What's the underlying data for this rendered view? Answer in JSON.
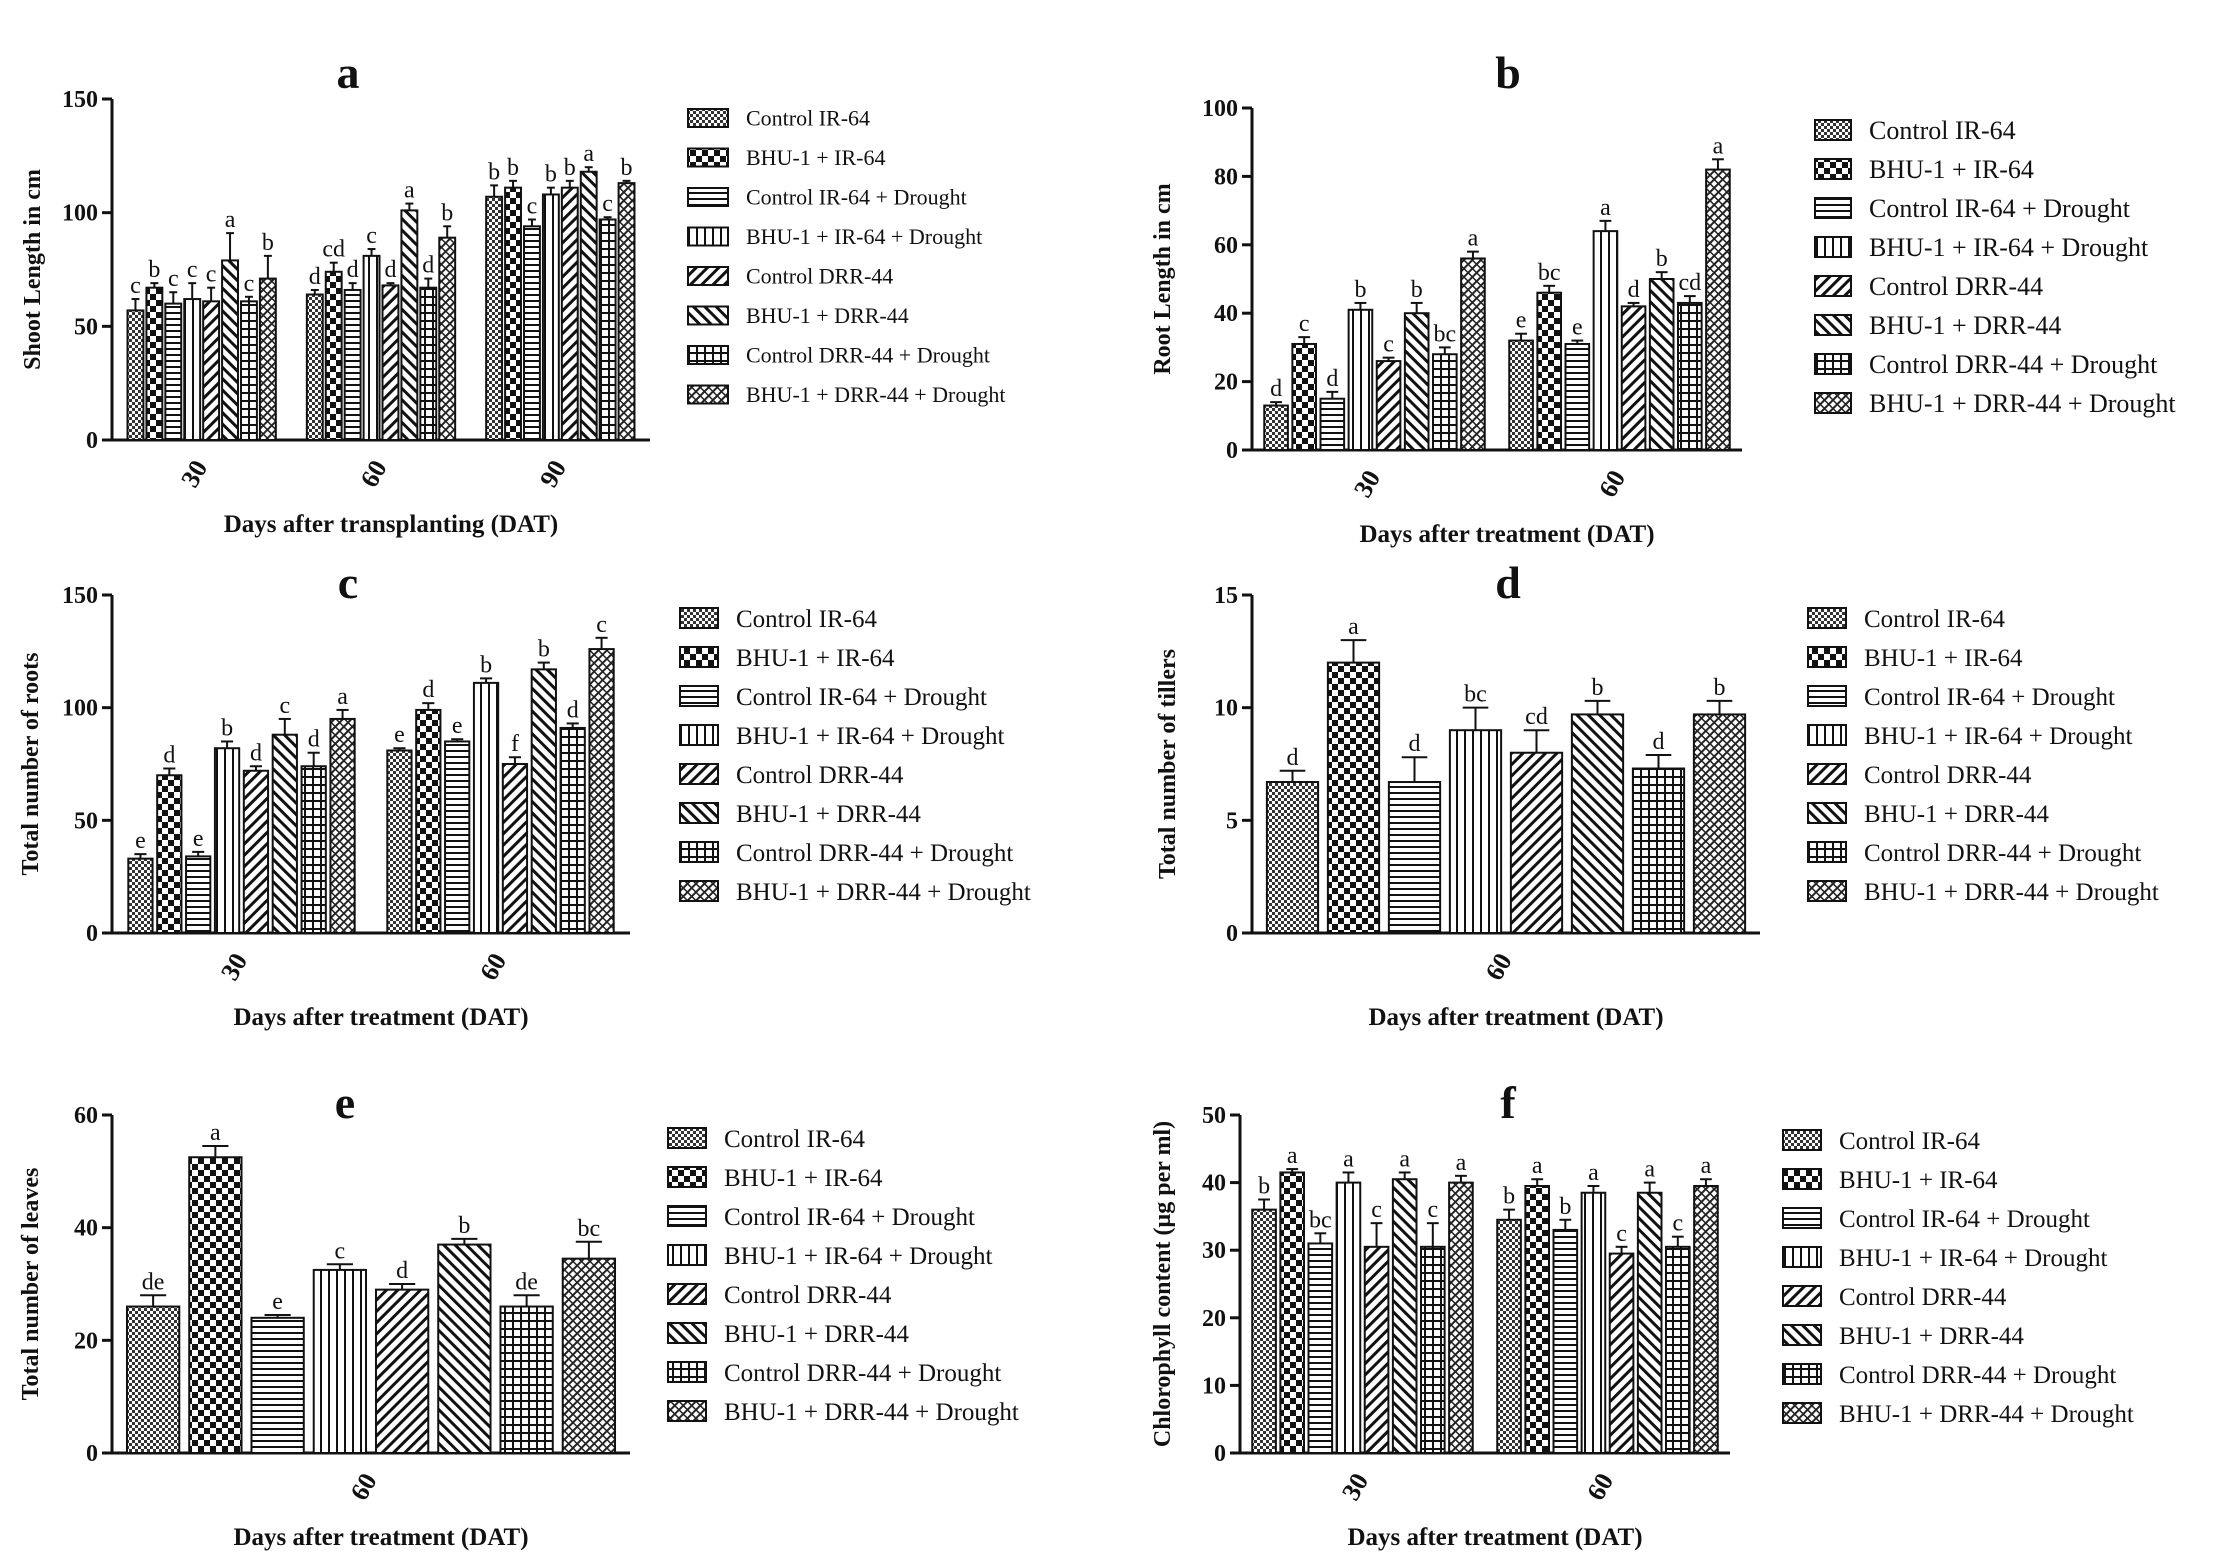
{
  "legend_labels": [
    "Control IR-64",
    "BHU-1 + IR-64",
    "Control IR-64 + Drought",
    "BHU-1 + IR-64 + Drought",
    "Control DRR-44",
    "BHU-1 + DRR-44",
    "Control DRR-44 + Drought",
    "BHU-1 + DRR-44 + Drought"
  ],
  "chart_data": [
    {
      "panel": "a",
      "type": "bar",
      "title": "a",
      "ylabel": "Shoot Length in cm",
      "xlabel": "Days after transplanting (DAT)",
      "categories": [
        "30",
        "60",
        "90"
      ],
      "ylim": [
        0,
        150
      ],
      "yticks": [
        0,
        50,
        100,
        150
      ],
      "series": [
        {
          "name": "Control IR-64",
          "values": [
            57,
            64,
            107
          ],
          "errors": [
            5,
            2,
            5
          ],
          "letters": [
            "c",
            "d",
            "b"
          ]
        },
        {
          "name": "BHU-1 + IR-64",
          "values": [
            67,
            74,
            111
          ],
          "errors": [
            2,
            4,
            3
          ],
          "letters": [
            "b",
            "cd",
            "b"
          ]
        },
        {
          "name": "Control IR-64 + Drought",
          "values": [
            60,
            66,
            94
          ],
          "errors": [
            5,
            3,
            3
          ],
          "letters": [
            "c",
            "d",
            "c"
          ]
        },
        {
          "name": "BHU-1 + IR-64 + Drought",
          "values": [
            62,
            81,
            108
          ],
          "errors": [
            7,
            3,
            3
          ],
          "letters": [
            "c",
            "c",
            "b"
          ]
        },
        {
          "name": "Control DRR-44",
          "values": [
            61,
            68,
            111
          ],
          "errors": [
            6,
            1,
            3
          ],
          "letters": [
            "c",
            "d",
            "b"
          ]
        },
        {
          "name": "BHU-1 + DRR-44",
          "values": [
            79,
            101,
            118
          ],
          "errors": [
            12,
            3,
            2
          ],
          "letters": [
            "a",
            "a",
            "a"
          ]
        },
        {
          "name": "Control DRR-44 + Drought",
          "values": [
            61,
            67,
            97
          ],
          "errors": [
            2,
            4,
            1
          ],
          "letters": [
            "c",
            "d",
            "c"
          ]
        },
        {
          "name": "BHU-1 + DRR-44 + Drought",
          "values": [
            71,
            89,
            113
          ],
          "errors": [
            10,
            5,
            1
          ],
          "letters": [
            "b",
            "b",
            "b"
          ]
        }
      ]
    },
    {
      "panel": "b",
      "type": "bar",
      "title": "b",
      "ylabel": "Root Length in cm",
      "xlabel": "Days after treatment (DAT)",
      "categories": [
        "30",
        "60"
      ],
      "ylim": [
        0,
        100
      ],
      "yticks": [
        0,
        20,
        40,
        60,
        80,
        100
      ],
      "series": [
        {
          "name": "Control IR-64",
          "values": [
            13,
            32
          ],
          "errors": [
            1,
            2
          ],
          "letters": [
            "d",
            "e"
          ]
        },
        {
          "name": "BHU-1 + IR-64",
          "values": [
            31,
            46
          ],
          "errors": [
            2,
            2
          ],
          "letters": [
            "c",
            "bc"
          ]
        },
        {
          "name": "Control IR-64 + Drought",
          "values": [
            15,
            31
          ],
          "errors": [
            2,
            1
          ],
          "letters": [
            "d",
            "e"
          ]
        },
        {
          "name": "BHU-1 + IR-64 + Drought",
          "values": [
            41,
            64
          ],
          "errors": [
            2,
            3
          ],
          "letters": [
            "b",
            "a"
          ]
        },
        {
          "name": "Control DRR-44",
          "values": [
            26,
            42
          ],
          "errors": [
            1,
            1
          ],
          "letters": [
            "c",
            "d"
          ]
        },
        {
          "name": "BHU-1 + DRR-44",
          "values": [
            40,
            50
          ],
          "errors": [
            3,
            2
          ],
          "letters": [
            "b",
            "b"
          ]
        },
        {
          "name": "Control DRR-44 + Drought",
          "values": [
            28,
            43
          ],
          "errors": [
            2,
            2
          ],
          "letters": [
            "bc",
            "cd"
          ]
        },
        {
          "name": "BHU-1 + DRR-44 + Drought",
          "values": [
            56,
            82
          ],
          "errors": [
            2,
            3
          ],
          "letters": [
            "a",
            "a"
          ]
        }
      ]
    },
    {
      "panel": "c",
      "type": "bar",
      "title": "c",
      "ylabel": "Total number of roots",
      "xlabel": "Days after treatment (DAT)",
      "categories": [
        "30",
        "60"
      ],
      "ylim": [
        0,
        150
      ],
      "yticks": [
        0,
        50,
        100,
        150
      ],
      "series": [
        {
          "name": "Control IR-64",
          "values": [
            33,
            81
          ],
          "errors": [
            2,
            1
          ],
          "letters": [
            "e",
            "e"
          ]
        },
        {
          "name": "BHU-1 + IR-64",
          "values": [
            70,
            99
          ],
          "errors": [
            3,
            3
          ],
          "letters": [
            "d",
            "d"
          ]
        },
        {
          "name": "Control IR-64 + Drought",
          "values": [
            34,
            85
          ],
          "errors": [
            2,
            1
          ],
          "letters": [
            "e",
            "e"
          ]
        },
        {
          "name": "BHU-1 + IR-64 + Drought",
          "values": [
            82,
            111
          ],
          "errors": [
            3,
            2
          ],
          "letters": [
            "b",
            "b"
          ]
        },
        {
          "name": "Control DRR-44",
          "values": [
            72,
            75
          ],
          "errors": [
            2,
            3
          ],
          "letters": [
            "d",
            "f"
          ]
        },
        {
          "name": "BHU-1 + DRR-44",
          "values": [
            88,
            117
          ],
          "errors": [
            7,
            3
          ],
          "letters": [
            "c",
            "b"
          ]
        },
        {
          "name": "Control DRR-44 + Drought",
          "values": [
            74,
            91
          ],
          "errors": [
            6,
            2
          ],
          "letters": [
            "d",
            "d"
          ]
        },
        {
          "name": "BHU-1 + DRR-44 + Drought",
          "values": [
            95,
            126
          ],
          "errors": [
            4,
            5
          ],
          "letters": [
            "a",
            "c"
          ]
        }
      ]
    },
    {
      "panel": "d",
      "type": "bar",
      "title": "d",
      "ylabel": "Total number of tillers",
      "xlabel": "Days after treatment (DAT)",
      "categories": [
        "60"
      ],
      "ylim": [
        0,
        15
      ],
      "yticks": [
        0,
        5,
        10,
        15
      ],
      "series": [
        {
          "name": "Control IR-64",
          "values": [
            6.7
          ],
          "errors": [
            0.5
          ],
          "letters": [
            "d"
          ]
        },
        {
          "name": "BHU-1 + IR-64",
          "values": [
            12.0
          ],
          "errors": [
            1.0
          ],
          "letters": [
            "a"
          ]
        },
        {
          "name": "Control IR-64 + Drought",
          "values": [
            6.7
          ],
          "errors": [
            1.1
          ],
          "letters": [
            "d"
          ]
        },
        {
          "name": "BHU-1 + IR-64 + Drought",
          "values": [
            9.0
          ],
          "errors": [
            1.0
          ],
          "letters": [
            "bc"
          ]
        },
        {
          "name": "Control DRR-44",
          "values": [
            8.0
          ],
          "errors": [
            1.0
          ],
          "letters": [
            "cd"
          ]
        },
        {
          "name": "BHU-1 + DRR-44",
          "values": [
            9.7
          ],
          "errors": [
            0.6
          ],
          "letters": [
            "b"
          ]
        },
        {
          "name": "Control DRR-44 + Drought",
          "values": [
            7.3
          ],
          "errors": [
            0.6
          ],
          "letters": [
            "d"
          ]
        },
        {
          "name": "BHU-1 + DRR-44 + Drought",
          "values": [
            9.7
          ],
          "errors": [
            0.6
          ],
          "letters": [
            "b"
          ]
        }
      ]
    },
    {
      "panel": "e",
      "type": "bar",
      "title": "e",
      "ylabel": "Total number of leaves",
      "xlabel": "Days after treatment (DAT)",
      "categories": [
        "60"
      ],
      "ylim": [
        0,
        60
      ],
      "yticks": [
        0,
        20,
        40,
        60
      ],
      "series": [
        {
          "name": "Control IR-64",
          "values": [
            26
          ],
          "errors": [
            2
          ],
          "letters": [
            "de"
          ]
        },
        {
          "name": "BHU-1 + IR-64",
          "values": [
            52.5
          ],
          "errors": [
            2
          ],
          "letters": [
            "a"
          ]
        },
        {
          "name": "Control IR-64 + Drought",
          "values": [
            24
          ],
          "errors": [
            0.5
          ],
          "letters": [
            "e"
          ]
        },
        {
          "name": "BHU-1 + IR-64 + Drought",
          "values": [
            32.5
          ],
          "errors": [
            1
          ],
          "letters": [
            "c"
          ]
        },
        {
          "name": "Control DRR-44",
          "values": [
            29
          ],
          "errors": [
            1
          ],
          "letters": [
            "d"
          ]
        },
        {
          "name": "BHU-1 + DRR-44",
          "values": [
            37
          ],
          "errors": [
            1
          ],
          "letters": [
            "b"
          ]
        },
        {
          "name": "Control DRR-44 + Drought",
          "values": [
            26
          ],
          "errors": [
            2
          ],
          "letters": [
            "de"
          ]
        },
        {
          "name": "BHU-1 + DRR-44 + Drought",
          "values": [
            34.5
          ],
          "errors": [
            3
          ],
          "letters": [
            "bc"
          ]
        }
      ]
    },
    {
      "panel": "f",
      "type": "bar",
      "title": "f",
      "ylabel": "Chlorophyll content (µg per ml)",
      "xlabel": "Days after treatment (DAT)",
      "categories": [
        "30",
        "60"
      ],
      "ylim": [
        0,
        50
      ],
      "yticks": [
        0,
        10,
        20,
        30,
        40,
        50
      ],
      "series": [
        {
          "name": "Control IR-64",
          "values": [
            36,
            34.5
          ],
          "errors": [
            1.5,
            1.5
          ],
          "letters": [
            "b",
            "b"
          ]
        },
        {
          "name": "BHU-1 + IR-64",
          "values": [
            41.5,
            39.5
          ],
          "errors": [
            0.5,
            1
          ],
          "letters": [
            "a",
            "a"
          ]
        },
        {
          "name": "Control IR-64 + Drought",
          "values": [
            31,
            33
          ],
          "errors": [
            1.5,
            1.5
          ],
          "letters": [
            "bc",
            "b"
          ]
        },
        {
          "name": "BHU-1 + IR-64 + Drought",
          "values": [
            40,
            38.5
          ],
          "errors": [
            1.5,
            1
          ],
          "letters": [
            "a",
            "a"
          ]
        },
        {
          "name": "Control DRR-44",
          "values": [
            30.5,
            29.5
          ],
          "errors": [
            3.5,
            1
          ],
          "letters": [
            "c",
            "c"
          ]
        },
        {
          "name": "BHU-1 + DRR-44",
          "values": [
            40.5,
            38.5
          ],
          "errors": [
            1,
            1.5
          ],
          "letters": [
            "a",
            "a"
          ]
        },
        {
          "name": "Control DRR-44 + Drought",
          "values": [
            30.5,
            30.5
          ],
          "errors": [
            3.5,
            1.5
          ],
          "letters": [
            "c",
            "c"
          ]
        },
        {
          "name": "BHU-1 + DRR-44 + Drought",
          "values": [
            40,
            39.5
          ],
          "errors": [
            1,
            1
          ],
          "letters": [
            "a",
            "a"
          ]
        }
      ]
    }
  ]
}
